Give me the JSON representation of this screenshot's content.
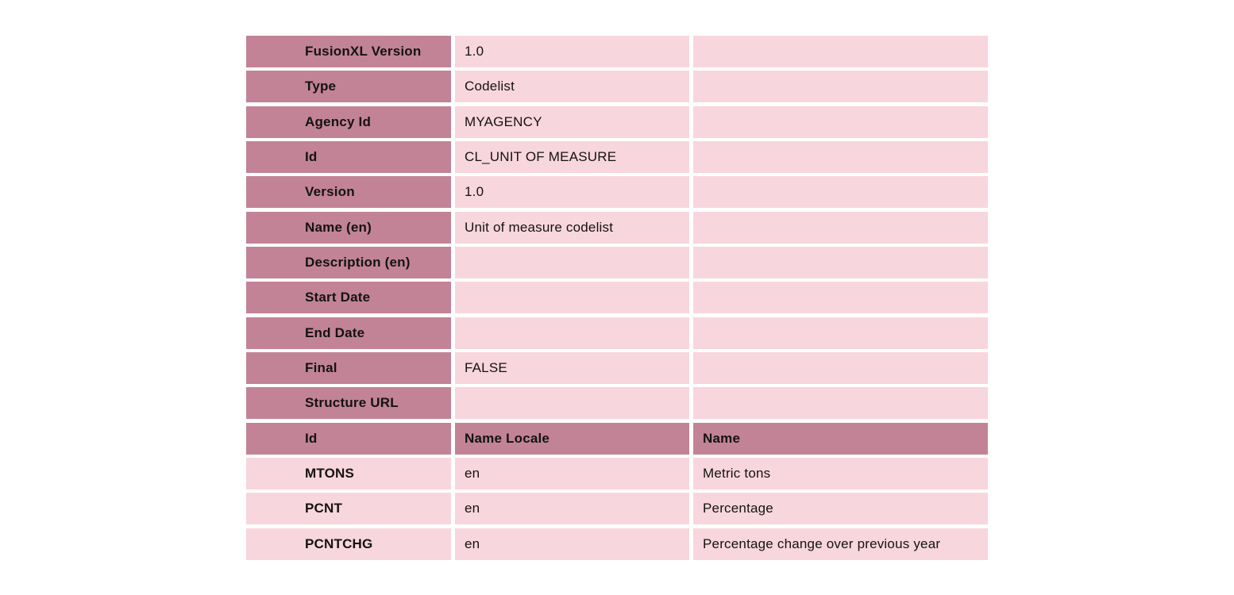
{
  "colors": {
    "label_header_bg": "#c28397",
    "value_cell_bg": "#f8d6dd",
    "text": "#131313",
    "page_bg": "#ffffff"
  },
  "meta": {
    "rows": [
      {
        "label": "FusionXL Version",
        "value": "1.0",
        "extra": ""
      },
      {
        "label": "Type",
        "value": "Codelist",
        "extra": ""
      },
      {
        "label": "Agency Id",
        "value": "MYAGENCY",
        "extra": ""
      },
      {
        "label": "Id",
        "value": "CL_UNIT OF MEASURE",
        "extra": ""
      },
      {
        "label": "Version",
        "value": "1.0",
        "extra": ""
      },
      {
        "label": "Name (en)",
        "value": "Unit of measure codelist",
        "extra": ""
      },
      {
        "label": "Description (en)",
        "value": "",
        "extra": ""
      },
      {
        "label": "Start Date",
        "value": "",
        "extra": ""
      },
      {
        "label": "End Date",
        "value": "",
        "extra": ""
      },
      {
        "label": "Final",
        "value": "FALSE",
        "extra": ""
      },
      {
        "label": "Structure URL",
        "value": "",
        "extra": ""
      }
    ]
  },
  "codes": {
    "header": {
      "id": "Id",
      "locale": "Name Locale",
      "name": "Name"
    },
    "rows": [
      {
        "id": "MTONS",
        "locale": "en",
        "name": "Metric tons"
      },
      {
        "id": "PCNT",
        "locale": "en",
        "name": "Percentage"
      },
      {
        "id": "PCNTCHG",
        "locale": "en",
        "name": "Percentage change over previous year"
      }
    ]
  }
}
